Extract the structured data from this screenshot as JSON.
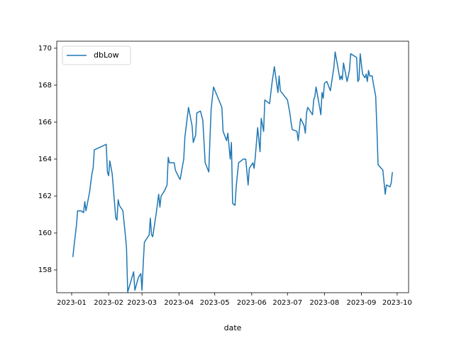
{
  "chart_data": {
    "type": "line",
    "xlabel": "date",
    "x": [
      1,
      2,
      4,
      5,
      8,
      10,
      11,
      12,
      15,
      17,
      18,
      19,
      29,
      30,
      31,
      32,
      34,
      37,
      38,
      39,
      40,
      43,
      45,
      46,
      47,
      52,
      53,
      56,
      58,
      59,
      60,
      61,
      65,
      66,
      67,
      68,
      71,
      73,
      74,
      75,
      78,
      80,
      81,
      82,
      86,
      87,
      90,
      91,
      94,
      95,
      98,
      101,
      102,
      104,
      105,
      108,
      110,
      112,
      115,
      116,
      117,
      119,
      126,
      127,
      130,
      131,
      133,
      134,
      135,
      137,
      138,
      140,
      144,
      146,
      148,
      149,
      152,
      153,
      154,
      156,
      158,
      159,
      161,
      162,
      166,
      168,
      170,
      173,
      174,
      175,
      181,
      183,
      184,
      185,
      189,
      190,
      191,
      192,
      195,
      196,
      197,
      198,
      202,
      203,
      204,
      205,
      208,
      209,
      210,
      211,
      212,
      214,
      217,
      220,
      221,
      224,
      225,
      226,
      227,
      228,
      231,
      233,
      234,
      239,
      240,
      241,
      242,
      244,
      246,
      247,
      248,
      249,
      250,
      252,
      253,
      255,
      256,
      257,
      261,
      263,
      264,
      267,
      268,
      269
    ],
    "series": [
      {
        "name": "dbLow",
        "color": "#1f77b4",
        "values": [
          158.7,
          159.3,
          160.4,
          161.2,
          161.2,
          161.1,
          161.7,
          161.2,
          162.2,
          163.2,
          163.5,
          164.5,
          164.8,
          163.3,
          163.1,
          163.9,
          163.2,
          160.8,
          160.7,
          161.8,
          161.5,
          161.2,
          159.9,
          159.2,
          156.8,
          157.9,
          156.9,
          157.6,
          157.8,
          156.9,
          158.3,
          159.5,
          159.9,
          160.8,
          159.9,
          159.8,
          161.1,
          162.1,
          161.4,
          162.0,
          162.3,
          162.6,
          164.1,
          163.8,
          163.8,
          163.4,
          163.0,
          162.9,
          164.0,
          165.2,
          166.8,
          165.8,
          164.9,
          165.3,
          166.5,
          166.6,
          166.1,
          163.8,
          163.3,
          165.1,
          166.7,
          167.9,
          166.8,
          165.5,
          165.0,
          165.4,
          164.0,
          164.9,
          161.6,
          161.5,
          162.5,
          163.8,
          164.0,
          164.0,
          162.6,
          163.5,
          163.8,
          163.5,
          164.1,
          165.7,
          164.4,
          166.2,
          165.5,
          167.2,
          167.0,
          168.1,
          169.0,
          167.6,
          168.5,
          167.7,
          167.2,
          166.5,
          166.0,
          165.6,
          165.5,
          165.0,
          165.6,
          166.2,
          165.8,
          165.4,
          166.5,
          166.8,
          166.4,
          167.2,
          167.4,
          167.9,
          166.8,
          166.4,
          167.6,
          167.3,
          168.1,
          168.2,
          167.7,
          169.0,
          169.8,
          168.7,
          168.3,
          168.5,
          168.3,
          169.2,
          168.2,
          168.8,
          169.7,
          169.5,
          168.2,
          168.3,
          169.7,
          168.6,
          168.4,
          168.6,
          168.2,
          168.8,
          168.5,
          168.5,
          168.1,
          167.4,
          165.7,
          163.7,
          163.4,
          162.1,
          162.6,
          162.5,
          162.7,
          163.3
        ]
      }
    ],
    "xlim": [
      -12.5,
      282.6
    ],
    "xticks": [
      {
        "value": 0,
        "label": "2023-01"
      },
      {
        "value": 31,
        "label": "2023-02"
      },
      {
        "value": 59,
        "label": "2023-03"
      },
      {
        "value": 90,
        "label": "2023-04"
      },
      {
        "value": 120,
        "label": "2023-05"
      },
      {
        "value": 151,
        "label": "2023-06"
      },
      {
        "value": 181,
        "label": "2023-07"
      },
      {
        "value": 212,
        "label": "2023-08"
      },
      {
        "value": 243,
        "label": "2023-09"
      },
      {
        "value": 273,
        "label": "2023-10"
      }
    ],
    "ylim": [
      156.77,
      170.38
    ],
    "yticks": [
      158,
      160,
      162,
      164,
      166,
      168,
      170
    ],
    "legend": "upper left"
  }
}
